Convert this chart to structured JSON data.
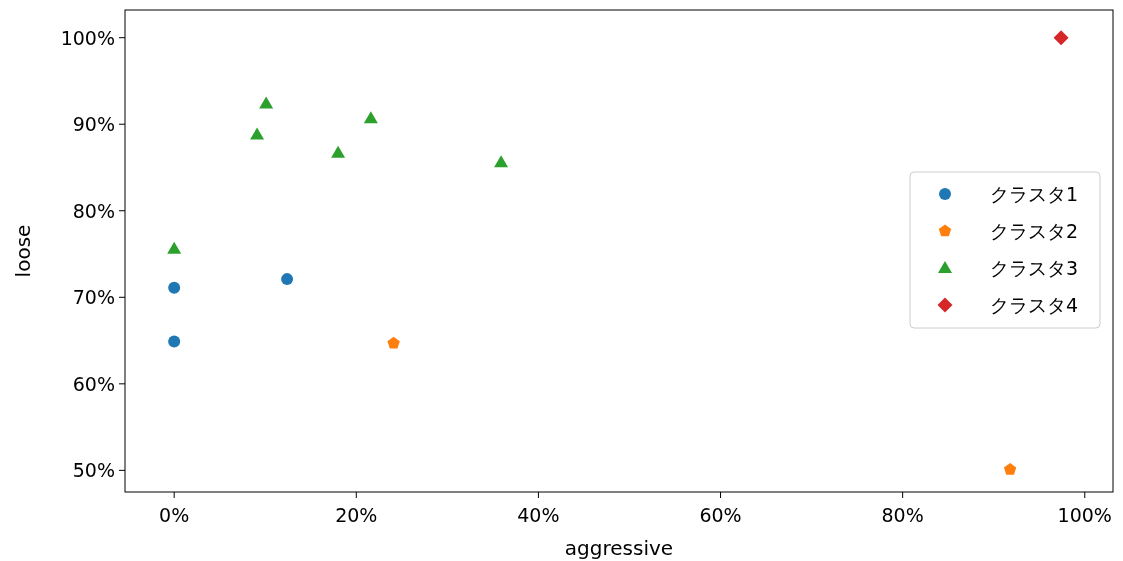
{
  "chart_data": {
    "type": "scatter",
    "xlabel": "aggressive",
    "ylabel": "loose",
    "xlim": [
      -5.4,
      103.1
    ],
    "ylim": [
      47.5,
      103.2
    ],
    "xticks": [
      {
        "value": 0,
        "label": "0%"
      },
      {
        "value": 20,
        "label": "20%"
      },
      {
        "value": 40,
        "label": "40%"
      },
      {
        "value": 60,
        "label": "60%"
      },
      {
        "value": 80,
        "label": "80%"
      },
      {
        "value": 100,
        "label": "100%"
      }
    ],
    "yticks": [
      {
        "value": 50,
        "label": "50%"
      },
      {
        "value": 60,
        "label": "60%"
      },
      {
        "value": 70,
        "label": "70%"
      },
      {
        "value": 80,
        "label": "80%"
      },
      {
        "value": 90,
        "label": "90%"
      },
      {
        "value": 100,
        "label": "100%"
      }
    ],
    "legend": "right",
    "grid": false,
    "series": [
      {
        "name": "クラスタ1",
        "color": "#1f77b4",
        "marker": "circle",
        "x": [
          0,
          0,
          12.4
        ],
        "values": [
          71.1,
          64.9,
          72.1
        ]
      },
      {
        "name": "クラスタ2",
        "color": "#ff7f0e",
        "x": [
          24.1,
          91.8
        ],
        "values": [
          64.7,
          50.1
        ]
      },
      {
        "name": "クラスタ3",
        "color": "#2ca02c",
        "marker": "triangle",
        "x": [
          0,
          9.1,
          10.1,
          18.0,
          21.6,
          35.9
        ],
        "values": [
          75.6,
          88.8,
          92.4,
          86.7,
          90.7,
          85.6
        ]
      },
      {
        "name": "クラスタ4",
        "color": "#d62728",
        "marker": "diamond",
        "x": [
          97.4
        ],
        "values": [
          100
        ]
      }
    ]
  }
}
